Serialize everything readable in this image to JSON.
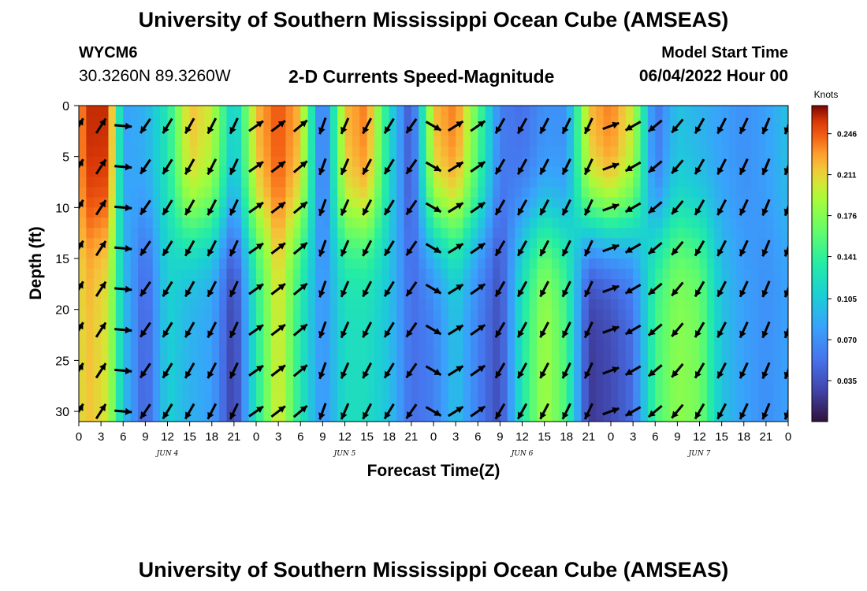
{
  "header": {
    "title": "University of Southern Mississippi Ocean Cube (AMSEAS)",
    "station": "WYCM6",
    "coords": "30.3260N  89.3260W",
    "subtitle": "2-D Currents Speed-Magnitude",
    "start_label": "Model Start Time",
    "start_value": "06/04/2022 Hour 00"
  },
  "footer": {
    "title": "University of Southern Mississippi Ocean Cube (AMSEAS)"
  },
  "chart_data": {
    "type": "heatmap",
    "title": "2-D Currents Speed-Magnitude",
    "xlabel": "Forecast Time(Z)",
    "ylabel": "Depth (ft)",
    "x_ticks": [
      "0",
      "3",
      "6",
      "9",
      "12",
      "15",
      "18",
      "21",
      "0",
      "3",
      "6",
      "9",
      "12",
      "15",
      "18",
      "21",
      "0",
      "3",
      "6",
      "9",
      "12",
      "15",
      "18",
      "21",
      "0",
      "3",
      "6",
      "9",
      "12",
      "15",
      "18",
      "21",
      "0"
    ],
    "day_labels": [
      "JUN 4",
      "JUN 5",
      "JUN 6",
      "JUN 7"
    ],
    "x_range_hours": [
      0,
      96
    ],
    "y_ticks": [
      0,
      5,
      10,
      15,
      20,
      25,
      30
    ],
    "ylim": [
      0,
      31
    ],
    "y_inverted": true,
    "colorbar": {
      "label": "Knots",
      "ticks": [
        "0.246",
        "0.211",
        "0.176",
        "0.141",
        "0.105",
        "0.070",
        "0.035"
      ],
      "range": [
        0.0,
        0.27
      ]
    },
    "speed_profile": {
      "note_units": "knots",
      "keyframes": [
        {
          "hour": 0,
          "surface": 0.22,
          "deep": 0.2
        },
        {
          "hour": 1,
          "surface": 0.26,
          "deep": 0.22
        },
        {
          "hour": 4,
          "surface": 0.26,
          "deep": 0.2
        },
        {
          "hour": 6,
          "surface": 0.08,
          "deep": 0.1
        },
        {
          "hour": 9,
          "surface": 0.09,
          "deep": 0.04
        },
        {
          "hour": 12,
          "surface": 0.13,
          "deep": 0.11
        },
        {
          "hour": 15,
          "surface": 0.22,
          "deep": 0.09
        },
        {
          "hour": 18,
          "surface": 0.2,
          "deep": 0.08
        },
        {
          "hour": 21,
          "surface": 0.1,
          "deep": 0.02
        },
        {
          "hour": 24,
          "surface": 0.22,
          "deep": 0.13
        },
        {
          "hour": 27,
          "surface": 0.25,
          "deep": 0.21
        },
        {
          "hour": 30,
          "surface": 0.22,
          "deep": 0.13
        },
        {
          "hour": 33,
          "surface": 0.04,
          "deep": 0.07
        },
        {
          "hour": 36,
          "surface": 0.22,
          "deep": 0.12
        },
        {
          "hour": 39,
          "surface": 0.24,
          "deep": 0.12
        },
        {
          "hour": 42,
          "surface": 0.12,
          "deep": 0.1
        },
        {
          "hour": 45,
          "surface": 0.03,
          "deep": 0.05
        },
        {
          "hour": 48,
          "surface": 0.22,
          "deep": 0.06
        },
        {
          "hour": 51,
          "surface": 0.24,
          "deep": 0.1
        },
        {
          "hour": 54,
          "surface": 0.16,
          "deep": 0.06
        },
        {
          "hour": 57,
          "surface": 0.06,
          "deep": 0.03
        },
        {
          "hour": 60,
          "surface": 0.05,
          "deep": 0.13
        },
        {
          "hour": 63,
          "surface": 0.07,
          "deep": 0.19
        },
        {
          "hour": 66,
          "surface": 0.07,
          "deep": 0.15
        },
        {
          "hour": 69,
          "surface": 0.22,
          "deep": 0.02
        },
        {
          "hour": 72,
          "surface": 0.24,
          "deep": 0.03
        },
        {
          "hour": 75,
          "surface": 0.2,
          "deep": 0.05
        },
        {
          "hour": 78,
          "surface": 0.05,
          "deep": 0.15
        },
        {
          "hour": 81,
          "surface": 0.1,
          "deep": 0.18
        },
        {
          "hour": 84,
          "surface": 0.09,
          "deep": 0.17
        },
        {
          "hour": 87,
          "surface": 0.08,
          "deep": 0.1
        },
        {
          "hour": 90,
          "surface": 0.07,
          "deep": 0.08
        },
        {
          "hour": 93,
          "surface": 0.08,
          "deep": 0.07
        },
        {
          "hour": 96,
          "surface": 0.1,
          "deep": 0.08
        }
      ]
    },
    "direction_by_hour": {
      "note": "compass degrees (direction arrows point to)",
      "keyframes": [
        {
          "hour": 0,
          "deg": 30
        },
        {
          "hour": 5,
          "deg": 35
        },
        {
          "hour": 8,
          "deg": 215
        },
        {
          "hour": 21,
          "deg": 205
        },
        {
          "hour": 24,
          "deg": 55
        },
        {
          "hour": 30,
          "deg": 50
        },
        {
          "hour": 33,
          "deg": 200
        },
        {
          "hour": 45,
          "deg": 215
        },
        {
          "hour": 47,
          "deg": 180
        },
        {
          "hour": 49,
          "deg": 60
        },
        {
          "hour": 54,
          "deg": 55
        },
        {
          "hour": 57,
          "deg": 210
        },
        {
          "hour": 69,
          "deg": 205
        },
        {
          "hour": 72,
          "deg": 70
        },
        {
          "hour": 75,
          "deg": 240
        },
        {
          "hour": 84,
          "deg": 210
        },
        {
          "hour": 96,
          "deg": 200
        }
      ]
    }
  }
}
